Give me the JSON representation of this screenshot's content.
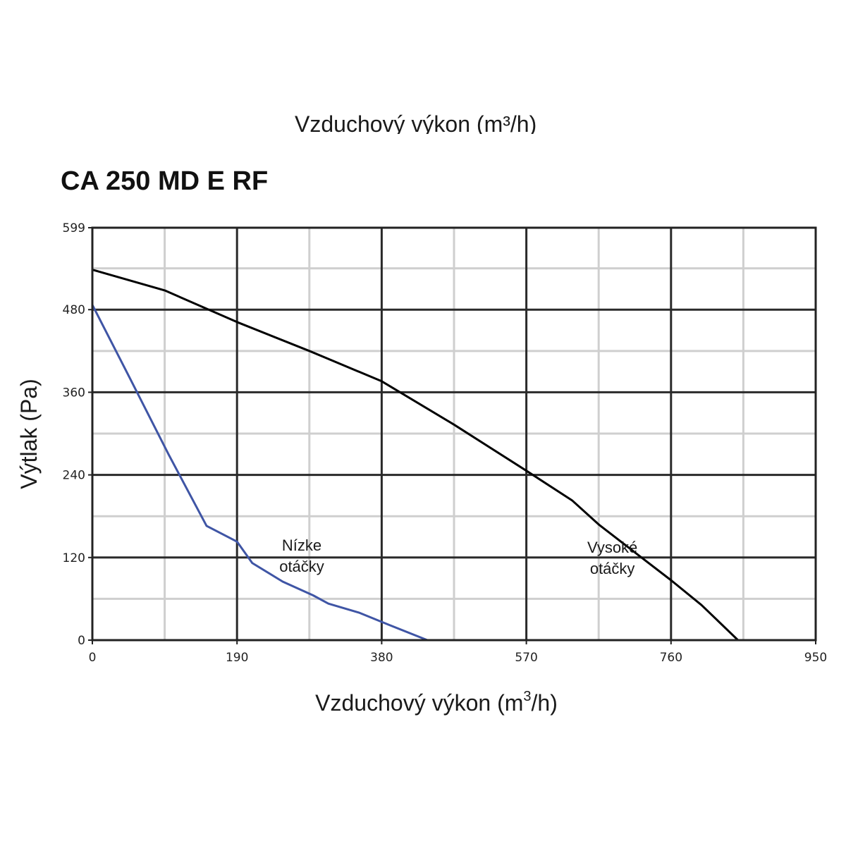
{
  "header": {
    "cropped_text": "Vzduchový výkon (m³/h)"
  },
  "chart_data": {
    "type": "line",
    "title": "CA 250 MD E RF",
    "xlabel": "Vzduchový výkon",
    "xlabel_unit_pre": " (m",
    "xlabel_unit_sup": "3",
    "xlabel_unit_post": "/h)",
    "ylabel": "Výtlak (Pa)",
    "xlim": [
      0,
      950
    ],
    "ylim": [
      0,
      599
    ],
    "x_ticks": [
      0,
      190,
      380,
      570,
      760,
      950
    ],
    "x_tick_labels": [
      "0",
      "190",
      "380",
      "570",
      "760",
      "950"
    ],
    "y_ticks": [
      0,
      120,
      240,
      360,
      480,
      599
    ],
    "y_tick_labels": [
      "0",
      "120",
      "240",
      "360",
      "480",
      "599"
    ],
    "x_minor_step": 95,
    "y_minor_step": 60,
    "grid": true,
    "series": [
      {
        "name": "Vysoké otáčky",
        "label_lines": [
          "Vysoké",
          "otáčky"
        ],
        "color": "#000000",
        "points": [
          [
            0,
            538
          ],
          [
            95,
            508
          ],
          [
            190,
            462
          ],
          [
            285,
            420
          ],
          [
            380,
            376
          ],
          [
            475,
            313
          ],
          [
            570,
            246
          ],
          [
            630,
            203
          ],
          [
            665,
            168
          ],
          [
            720,
            121
          ],
          [
            760,
            87
          ],
          [
            800,
            51
          ],
          [
            848,
            0
          ]
        ]
      },
      {
        "name": "Nízke otáčky",
        "label_lines": [
          "Nízke",
          "otáčky"
        ],
        "color": "#3f55a5",
        "points": [
          [
            0,
            487
          ],
          [
            50,
            379
          ],
          [
            100,
            270
          ],
          [
            150,
            166
          ],
          [
            190,
            143
          ],
          [
            210,
            112
          ],
          [
            250,
            85
          ],
          [
            290,
            65
          ],
          [
            310,
            53
          ],
          [
            350,
            40
          ],
          [
            390,
            22
          ],
          [
            440,
            0
          ]
        ]
      }
    ]
  }
}
